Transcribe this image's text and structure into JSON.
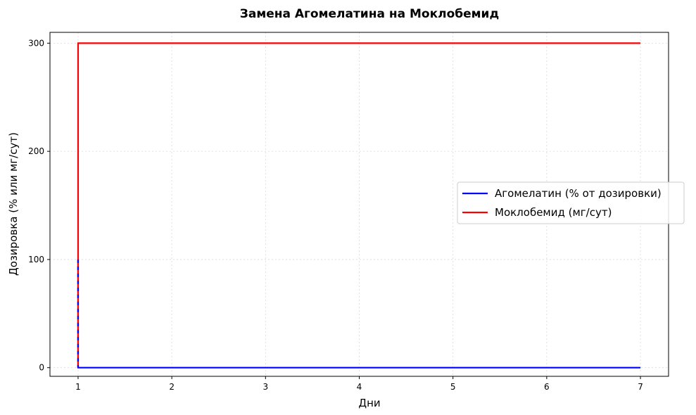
{
  "chart_data": {
    "type": "line",
    "title": "Замена Агомелатина на Моклобемид",
    "xlabel": "Дни",
    "ylabel": "Дозировка (% или мг/сут)",
    "xlim": [
      0.7,
      7.3
    ],
    "ylim": [
      -8,
      310
    ],
    "x_ticks": [
      1,
      2,
      3,
      4,
      5,
      6,
      7
    ],
    "y_ticks": [
      0,
      100,
      200,
      300
    ],
    "grid": true,
    "legend_position": "center-right",
    "series": [
      {
        "name": "Агомелатин (% от дозировки)",
        "color": "#0000ff",
        "points": [
          [
            1,
            100
          ],
          [
            1,
            0
          ],
          [
            7,
            0
          ]
        ]
      },
      {
        "name": "Моклобемид (мг/сут)",
        "color": "#ff0000",
        "points": [
          [
            1,
            0
          ],
          [
            1,
            300
          ],
          [
            7,
            300
          ]
        ]
      }
    ]
  }
}
